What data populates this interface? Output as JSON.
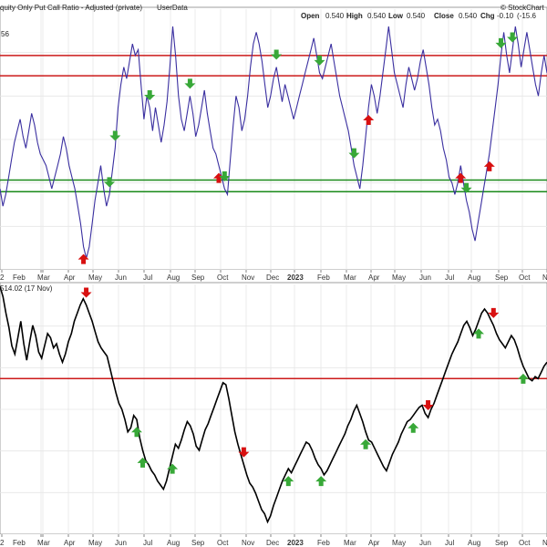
{
  "header": {
    "title": "quity Only Put Call Ratio - Adjusted (private)",
    "source": "UserData",
    "watermark": "© StockChart",
    "ohlc": [
      {
        "label": "Open",
        "value": "0.540"
      },
      {
        "label": "High",
        "value": "0.540"
      },
      {
        "label": "Low",
        "value": "0.540"
      },
      {
        "label": "Close",
        "value": "0.540"
      },
      {
        "label": "Chg",
        "value": "-0.10"
      }
    ],
    "chg_pct": "(-15.6",
    "y_fragment": "56"
  },
  "lower_header": {
    "text": "514.02 (17 Nov)"
  },
  "x_axis": {
    "upper_labels": [
      "2",
      "Feb",
      "Mar",
      "Apr",
      "May",
      "Jun",
      "Jul",
      "Aug",
      "Sep",
      "Oct",
      "Nov",
      "Dec",
      "2023",
      "Feb",
      "Mar",
      "Apr",
      "May",
      "Jun",
      "Jul",
      "Aug",
      "Sep",
      "Oct",
      "N"
    ],
    "lower_labels": [
      "2",
      "Feb",
      "Mar",
      "Apr",
      "May",
      "Jun",
      "Jul",
      "Aug",
      "Sep",
      "Oct",
      "Nov",
      "Dec",
      "2023",
      "Feb",
      "Mar",
      "Apr",
      "May",
      "Jun",
      "Jul",
      "Aug",
      "Sep",
      "Oct",
      "N"
    ],
    "bold_labels": [
      "2023"
    ]
  },
  "colors": {
    "ratio_line": "#3a2fa0",
    "price_line": "#000000",
    "red_line": "#cc1a1a",
    "green_line": "#1a8a1a",
    "up_arrow": "#d81010",
    "down_arrow": "#38a838",
    "grid": "#e6e6e6",
    "border": "#888888"
  },
  "chart_data": [
    {
      "type": "line",
      "series": [
        {
          "values": [
            0.34,
            0.31,
            0.33,
            0.36,
            0.39,
            0.42,
            0.44,
            0.46,
            0.43,
            0.41,
            0.44,
            0.47,
            0.45,
            0.42,
            0.4,
            0.39,
            0.38,
            0.36,
            0.34,
            0.36,
            0.38,
            0.4,
            0.43,
            0.41,
            0.38,
            0.36,
            0.34,
            0.31,
            0.28,
            0.24,
            0.22,
            0.24,
            0.28,
            0.32,
            0.35,
            0.38,
            0.34,
            0.31,
            0.33,
            0.37,
            0.41,
            0.48,
            0.52,
            0.55,
            0.53,
            0.56,
            0.59,
            0.57,
            0.58,
            0.52,
            0.46,
            0.5,
            0.48,
            0.44,
            0.48,
            0.45,
            0.42,
            0.45,
            0.49,
            0.55,
            0.62,
            0.57,
            0.5,
            0.46,
            0.44,
            0.47,
            0.5,
            0.47,
            0.43,
            0.45,
            0.48,
            0.51,
            0.47,
            0.44,
            0.41,
            0.4,
            0.38,
            0.36,
            0.34,
            0.33,
            0.39,
            0.45,
            0.5,
            0.48,
            0.44,
            0.46,
            0.5,
            0.55,
            0.59,
            0.61,
            0.59,
            0.56,
            0.52,
            0.48,
            0.5,
            0.53,
            0.55,
            0.52,
            0.49,
            0.52,
            0.5,
            0.48,
            0.46,
            0.48,
            0.5,
            0.52,
            0.54,
            0.56,
            0.58,
            0.6,
            0.57,
            0.54,
            0.53,
            0.55,
            0.57,
            0.59,
            0.56,
            0.53,
            0.5,
            0.48,
            0.46,
            0.44,
            0.41,
            0.38,
            0.36,
            0.34,
            0.38,
            0.43,
            0.48,
            0.52,
            0.5,
            0.47,
            0.5,
            0.54,
            0.58,
            0.62,
            0.58,
            0.54,
            0.52,
            0.5,
            0.48,
            0.52,
            0.55,
            0.53,
            0.51,
            0.53,
            0.56,
            0.58,
            0.55,
            0.52,
            0.48,
            0.45,
            0.46,
            0.44,
            0.41,
            0.39,
            0.36,
            0.35,
            0.33,
            0.35,
            0.38,
            0.35,
            0.32,
            0.3,
            0.27,
            0.25,
            0.28,
            0.31,
            0.34,
            0.37,
            0.4,
            0.44,
            0.48,
            0.52,
            0.57,
            0.61,
            0.57,
            0.54,
            0.58,
            0.62,
            0.59,
            0.55,
            0.58,
            0.61,
            0.58,
            0.55,
            0.52,
            0.5,
            0.54,
            0.57,
            0.54
          ]
        }
      ],
      "reference_levels": [
        0.57,
        0.535,
        0.355,
        0.335
      ],
      "ylim": [
        0.2,
        0.65
      ],
      "signals_up": [
        29,
        76,
        128,
        160,
        170
      ],
      "signals_down": [
        38,
        40,
        52,
        66,
        78,
        96,
        111,
        123,
        162,
        174,
        178
      ]
    },
    {
      "type": "line",
      "series": [
        {
          "values": [
            4750,
            4700,
            4620,
            4550,
            4460,
            4420,
            4500,
            4580,
            4470,
            4390,
            4480,
            4560,
            4510,
            4430,
            4400,
            4460,
            4520,
            4500,
            4450,
            4470,
            4420,
            4380,
            4420,
            4480,
            4520,
            4580,
            4620,
            4660,
            4690,
            4660,
            4620,
            4580,
            4530,
            4480,
            4450,
            4430,
            4410,
            4350,
            4290,
            4230,
            4180,
            4150,
            4100,
            4040,
            4060,
            4120,
            4100,
            4010,
            3950,
            3900,
            3880,
            3850,
            3830,
            3800,
            3780,
            3760,
            3800,
            3860,
            3920,
            3980,
            3960,
            4000,
            4050,
            4090,
            4070,
            4030,
            3970,
            3950,
            4000,
            4050,
            4080,
            4120,
            4160,
            4200,
            4240,
            4280,
            4270,
            4200,
            4120,
            4040,
            3980,
            3930,
            3880,
            3830,
            3790,
            3770,
            3740,
            3700,
            3660,
            3640,
            3600,
            3630,
            3680,
            3720,
            3760,
            3800,
            3830,
            3860,
            3840,
            3870,
            3900,
            3930,
            3960,
            3990,
            3980,
            3950,
            3910,
            3880,
            3860,
            3830,
            3850,
            3880,
            3910,
            3940,
            3970,
            4000,
            4030,
            4070,
            4100,
            4140,
            4170,
            4130,
            4090,
            4040,
            4000,
            3990,
            3960,
            3930,
            3900,
            3870,
            3850,
            3890,
            3930,
            3960,
            3990,
            4030,
            4060,
            4090,
            4100,
            4120,
            4140,
            4160,
            4170,
            4130,
            4110,
            4150,
            4180,
            4220,
            4260,
            4300,
            4340,
            4380,
            4420,
            4450,
            4480,
            4520,
            4560,
            4580,
            4550,
            4510,
            4540,
            4580,
            4620,
            4640,
            4620,
            4590,
            4560,
            4520,
            4490,
            4470,
            4450,
            4480,
            4510,
            4490,
            4450,
            4400,
            4360,
            4330,
            4300,
            4290,
            4310,
            4300,
            4330,
            4360,
            4380
          ]
        }
      ],
      "reference_levels": [
        4300
      ],
      "ylim": [
        3540,
        4760
      ],
      "signals_up": [
        46,
        48,
        58,
        97,
        108,
        123,
        139,
        161,
        176
      ],
      "signals_down": [
        29,
        82,
        144,
        166
      ]
    }
  ]
}
